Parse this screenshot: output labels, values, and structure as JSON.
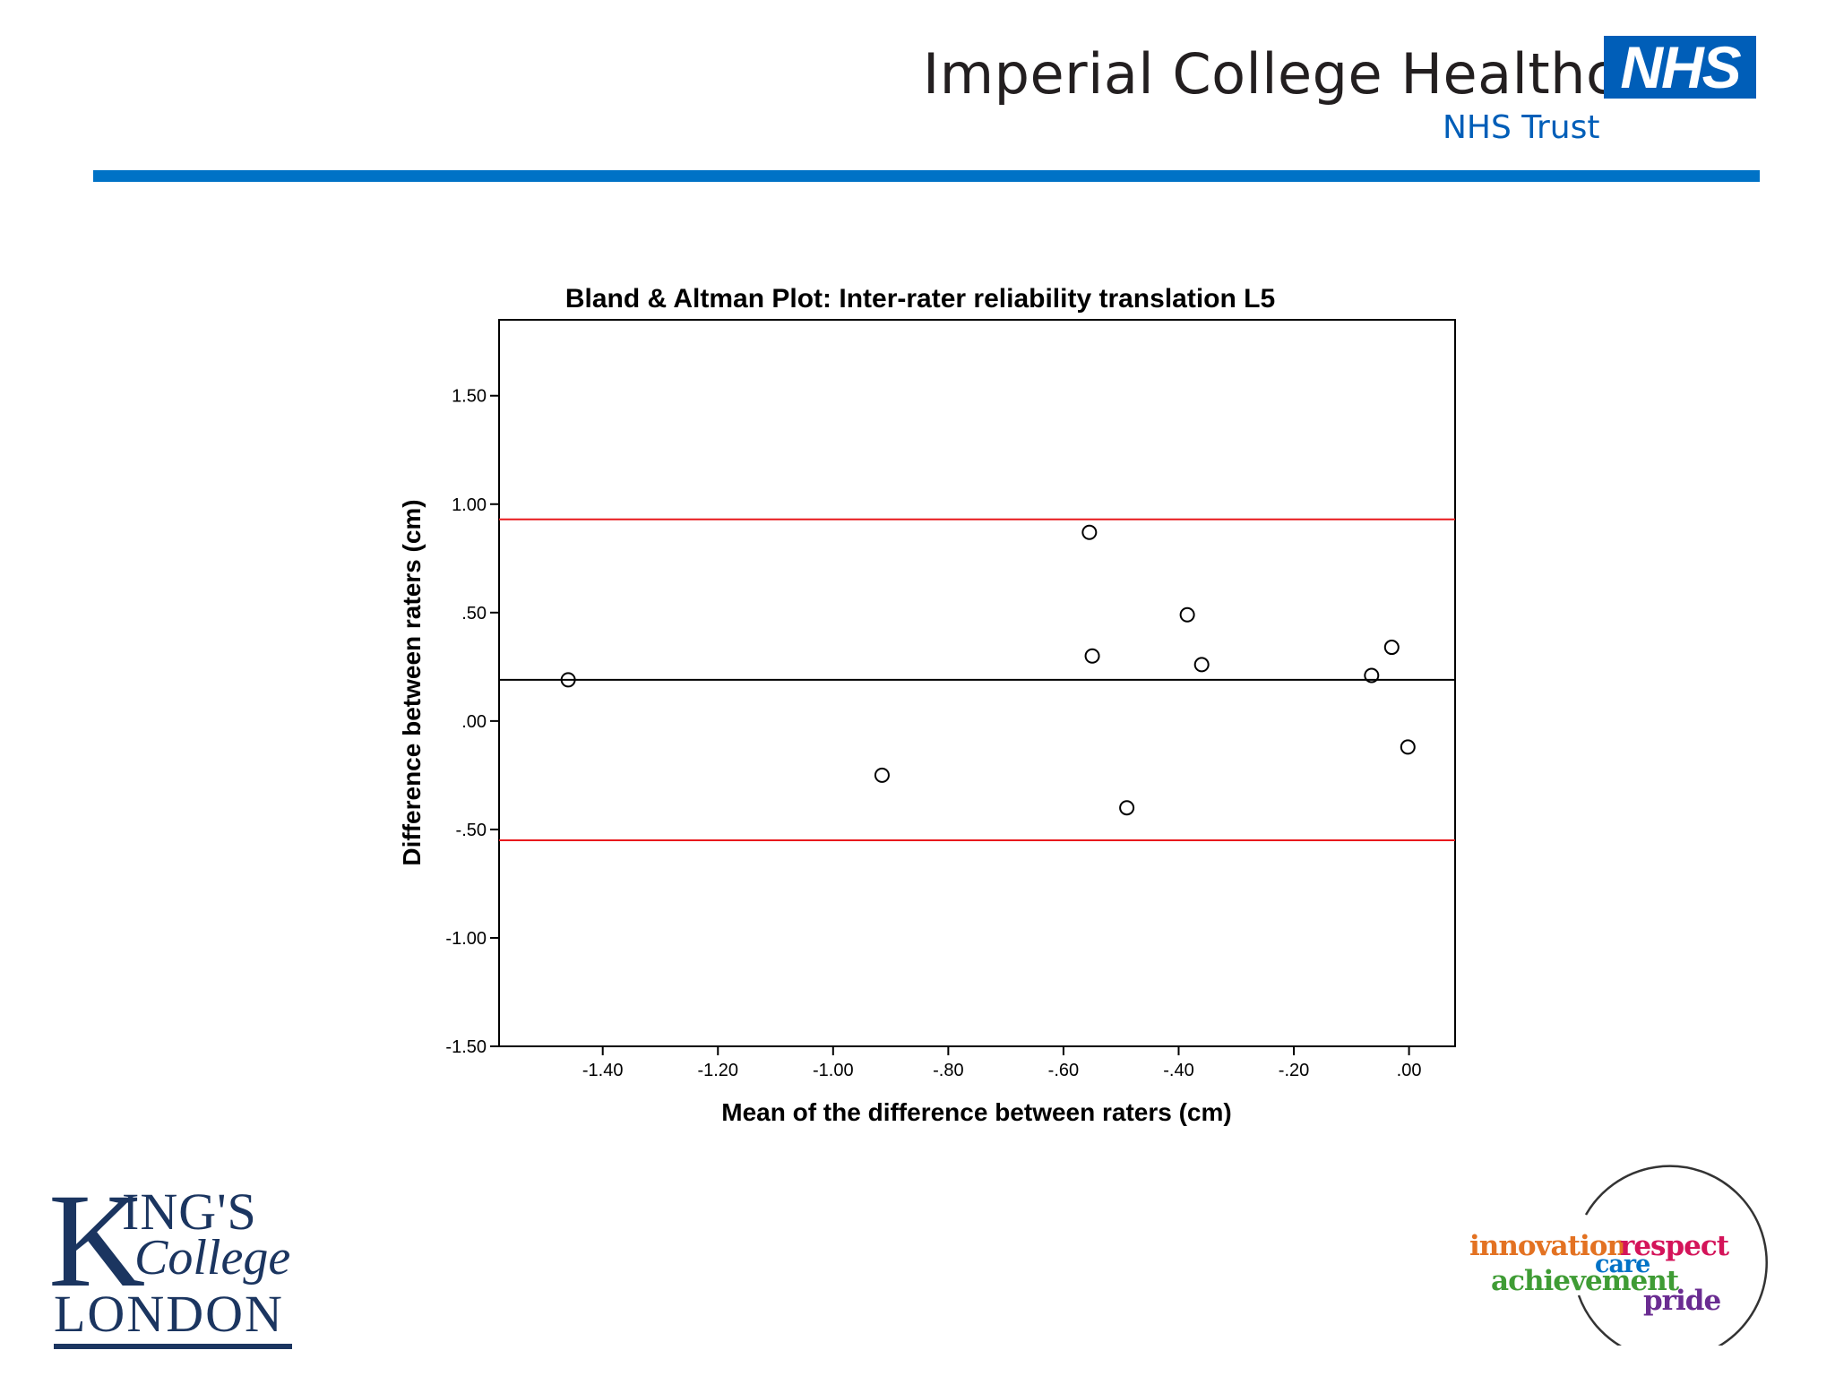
{
  "header": {
    "organisation_name": "Imperial College Healthcare",
    "nhs_logo_text": "NHS",
    "trust_label": "NHS Trust",
    "rule_color": "#0072c6"
  },
  "chart_data": {
    "type": "scatter",
    "title": "Bland & Altman Plot: Inter-rater reliability translation L5",
    "xlabel": "Mean of the difference between raters (cm)",
    "ylabel": "Difference between raters (cm)",
    "xlim": [
      -1.58,
      0.08
    ],
    "ylim": [
      -1.5,
      1.85
    ],
    "x_ticks": [
      -1.4,
      -1.2,
      -1.0,
      -0.8,
      -0.6,
      -0.4,
      -0.2,
      0.0
    ],
    "x_tick_labels": [
      "-1.40",
      "-1.20",
      "-1.00",
      "-.80",
      "-.60",
      "-.40",
      "-.20",
      ".00"
    ],
    "y_ticks": [
      1.5,
      1.0,
      0.5,
      0.0,
      -0.5,
      -1.0,
      -1.5
    ],
    "y_tick_labels": [
      "1.50",
      "1.00",
      ".50",
      ".00",
      "-.50",
      "-1.00",
      "-1.50"
    ],
    "points": [
      {
        "x": -1.46,
        "y": 0.19
      },
      {
        "x": -0.915,
        "y": -0.25
      },
      {
        "x": -0.555,
        "y": 0.87
      },
      {
        "x": -0.55,
        "y": 0.3
      },
      {
        "x": -0.49,
        "y": -0.4
      },
      {
        "x": -0.385,
        "y": 0.49
      },
      {
        "x": -0.36,
        "y": 0.26
      },
      {
        "x": -0.065,
        "y": 0.21
      },
      {
        "x": -0.03,
        "y": 0.34
      },
      {
        "x": -0.002,
        "y": -0.12
      }
    ],
    "reference_lines": [
      {
        "y": 0.93,
        "color": "#e8191c"
      },
      {
        "y": 0.19,
        "color": "#000000"
      },
      {
        "y": -0.55,
        "color": "#e8191c"
      }
    ],
    "grid": false,
    "legend": "none",
    "marker": "open-circle"
  },
  "footer": {
    "university_logo": {
      "k": "K",
      "ings": "ING'S",
      "college": "College",
      "london": "LONDON"
    },
    "values_logo": {
      "innovation": "innovation",
      "respect": "respect",
      "care": "care",
      "achievement": "achievement",
      "pride": "pride"
    }
  }
}
